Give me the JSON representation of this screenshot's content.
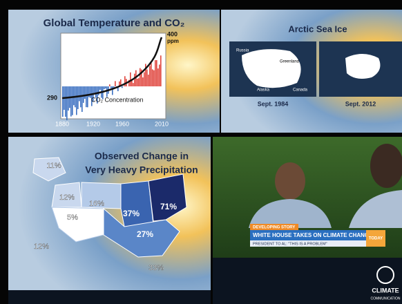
{
  "panels": [
    {
      "title": "Global Temperature and CO₂",
      "top_label": "400",
      "unit": "ppm",
      "left_label": "290",
      "curve_label": "CO₂ Concentration",
      "years": [
        "1880",
        "1920",
        "1960",
        "2010"
      ]
    },
    {
      "title": "Arctic Sea Ice",
      "map_labels": [
        "Russia",
        "Greenland",
        "Alaska",
        "Canada"
      ],
      "captions": [
        "Sept. 1984",
        "Sept. 2012"
      ]
    },
    {
      "title_lines": [
        "Observed Change in",
        "Very Heavy Precipitation"
      ],
      "regions": [
        "11%",
        "12%",
        "16%",
        "5%",
        "37%",
        "71%",
        "27%",
        "12%",
        "33%"
      ]
    },
    {
      "tag": "DEVELOPING STORY",
      "headline": "WHITE HOUSE TAKES ON CLIMATE CHANGE",
      "subline": "PRESIDENT TO AL: \"THIS IS A PROBLEM\"",
      "show": "TODAY",
      "logo_lines": [
        "CLIMATE",
        "COMMUNICATION"
      ]
    }
  ]
}
